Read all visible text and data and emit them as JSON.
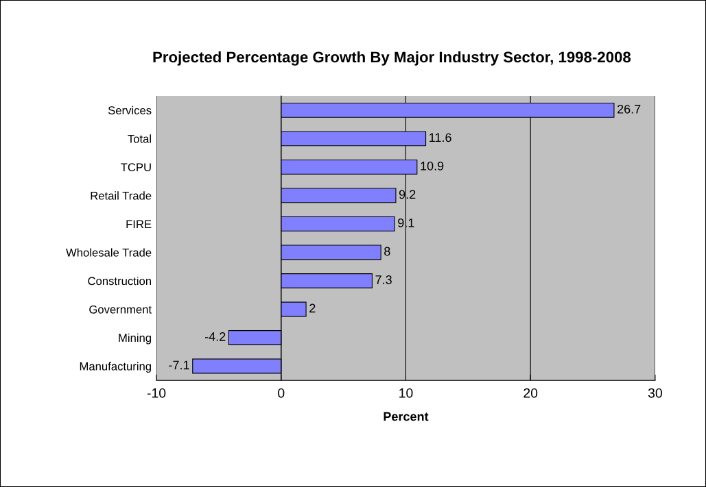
{
  "chart_data": {
    "type": "bar",
    "orientation": "horizontal",
    "title": "Projected Percentage Growth By Major Industry Sector, 1998-2008",
    "xlabel": "Percent",
    "categories": [
      "Services",
      "Total",
      "TCPU",
      "Retail Trade",
      "FIRE",
      "Wholesale Trade",
      "Construction",
      "Government",
      "Mining",
      "Manufacturing"
    ],
    "values": [
      26.7,
      11.6,
      10.9,
      9.2,
      9.1,
      8,
      7.3,
      2,
      -4.2,
      -7.1
    ],
    "color": "#8080ff",
    "xlim": [
      -10,
      30
    ],
    "xticks": [
      -10,
      0,
      10,
      20,
      30
    ],
    "grid": "x",
    "data_labels": true
  }
}
